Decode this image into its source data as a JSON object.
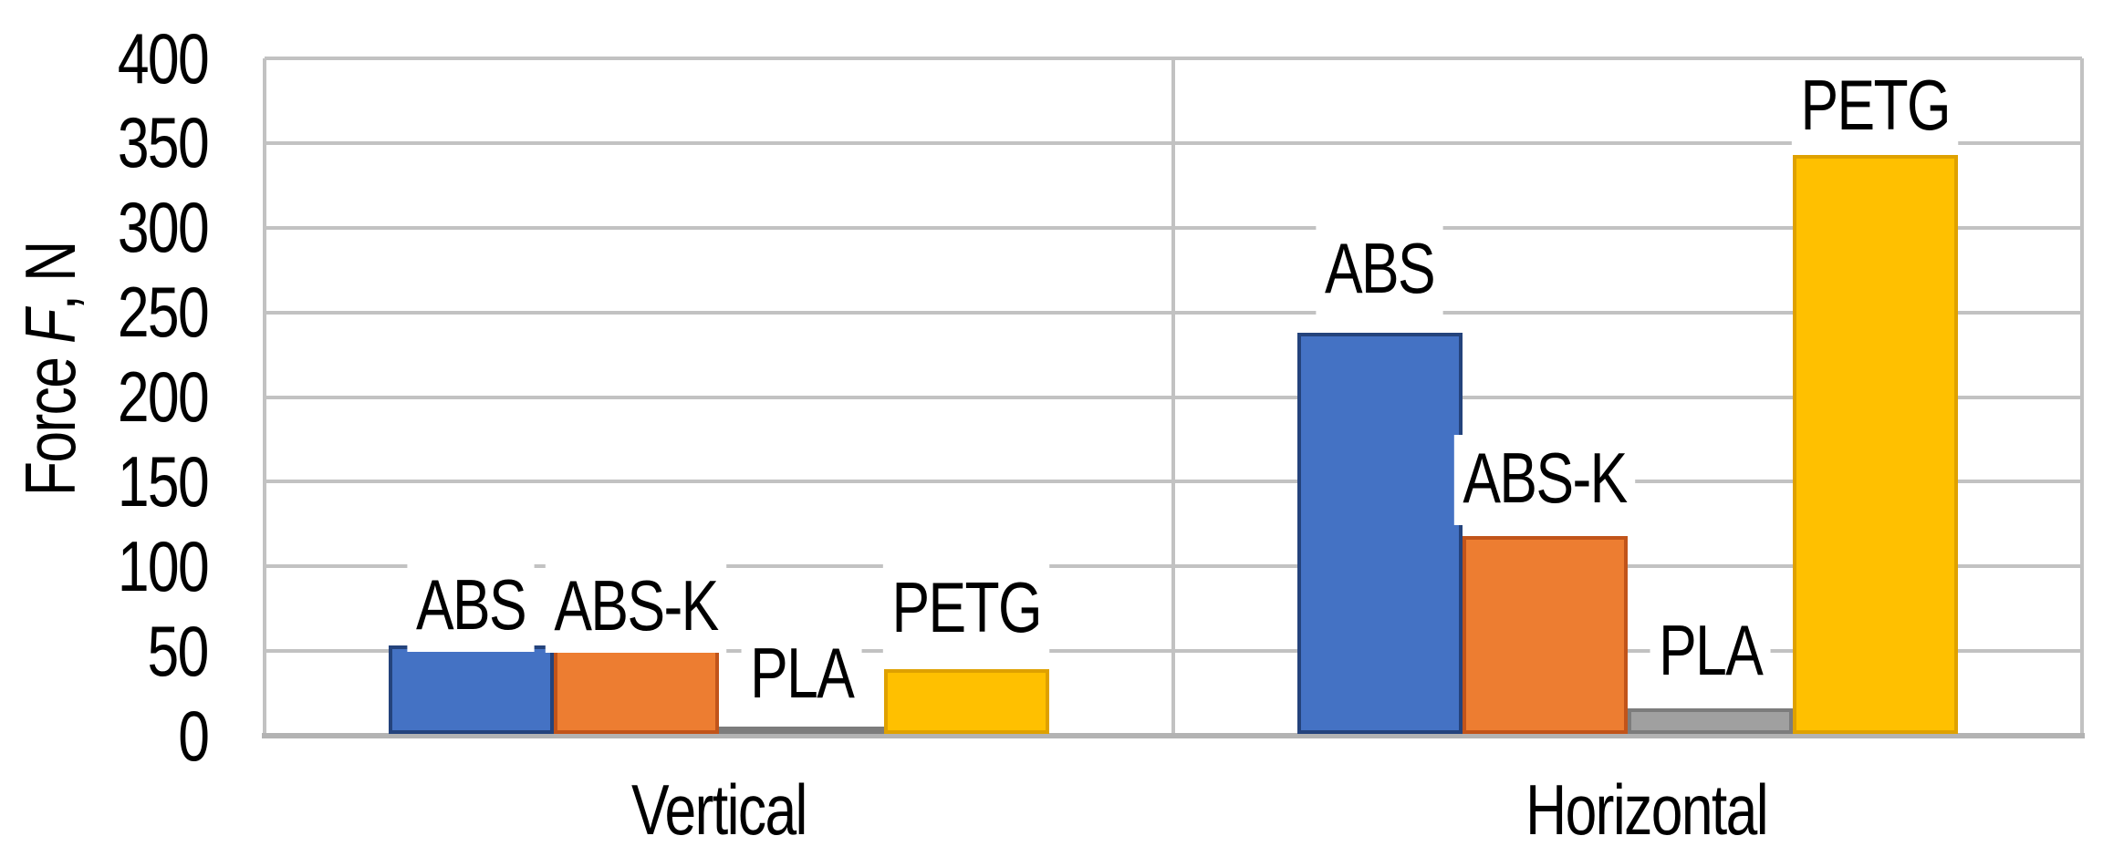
{
  "chart_data": {
    "type": "bar",
    "title": "",
    "ylabel": "Force F, N",
    "ylabel_parts": {
      "pre": "Force ",
      "variable": "F",
      "post": ", N"
    },
    "xlabel": "",
    "categories": [
      "Vertical",
      "Horizontal"
    ],
    "series": [
      {
        "name": "ABS",
        "values": [
          52,
          237
        ]
      },
      {
        "name": "ABS-K",
        "values": [
          50,
          117
        ]
      },
      {
        "name": "PLA",
        "values": [
          3,
          15
        ]
      },
      {
        "name": "PETG",
        "values": [
          38,
          342
        ]
      }
    ],
    "bar_label_style": "series name shown above each bar",
    "ylim": [
      0,
      400
    ],
    "ytick_step": 50,
    "ytick_labels": [
      "400",
      "350",
      "300",
      "250",
      "200",
      "150",
      "100",
      "50",
      "0"
    ],
    "grid": true,
    "legend": "none"
  },
  "colors": {
    "series_fill": [
      "#4472C4",
      "#ED7D31",
      "#A0A0A0",
      "#FFC000"
    ],
    "series_border": [
      "#24437C",
      "#C1541A",
      "#7C7C7C",
      "#DFA100"
    ],
    "gridline": "#C2C2C2",
    "axis_line": "#B3B3B3",
    "text": "#000000",
    "background": "#FFFFFF",
    "label_background": "#FFFFFF"
  }
}
